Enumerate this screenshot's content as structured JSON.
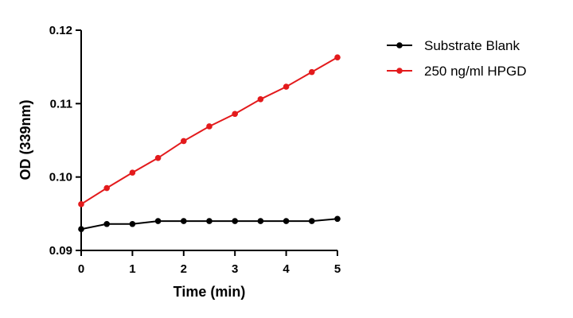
{
  "chart_data": {
    "type": "line",
    "xlabel": "Time (min)",
    "ylabel": "OD (339nm)",
    "xlim": [
      0,
      5
    ],
    "ylim": [
      0.09,
      0.12
    ],
    "x_ticks": [
      "0",
      "1",
      "2",
      "3",
      "4",
      "5"
    ],
    "y_ticks": [
      "0.09",
      "0.10",
      "0.11",
      "0.12"
    ],
    "grid": false,
    "legend_position": "top-right",
    "x": [
      0,
      0.5,
      1,
      1.5,
      2,
      2.5,
      3,
      3.5,
      4,
      4.5,
      5
    ],
    "series": [
      {
        "name": "Substrate Blank",
        "color": "#000000",
        "values": [
          0.0929,
          0.0936,
          0.0936,
          0.094,
          0.094,
          0.094,
          0.094,
          0.094,
          0.094,
          0.094,
          0.0943
        ]
      },
      {
        "name": "250 ng/ml HPGD",
        "color": "#e31a1c",
        "values": [
          0.0963,
          0.0985,
          0.1006,
          0.1026,
          0.1049,
          0.1069,
          0.1086,
          0.1106,
          0.1123,
          0.1143,
          0.1163
        ]
      }
    ]
  }
}
